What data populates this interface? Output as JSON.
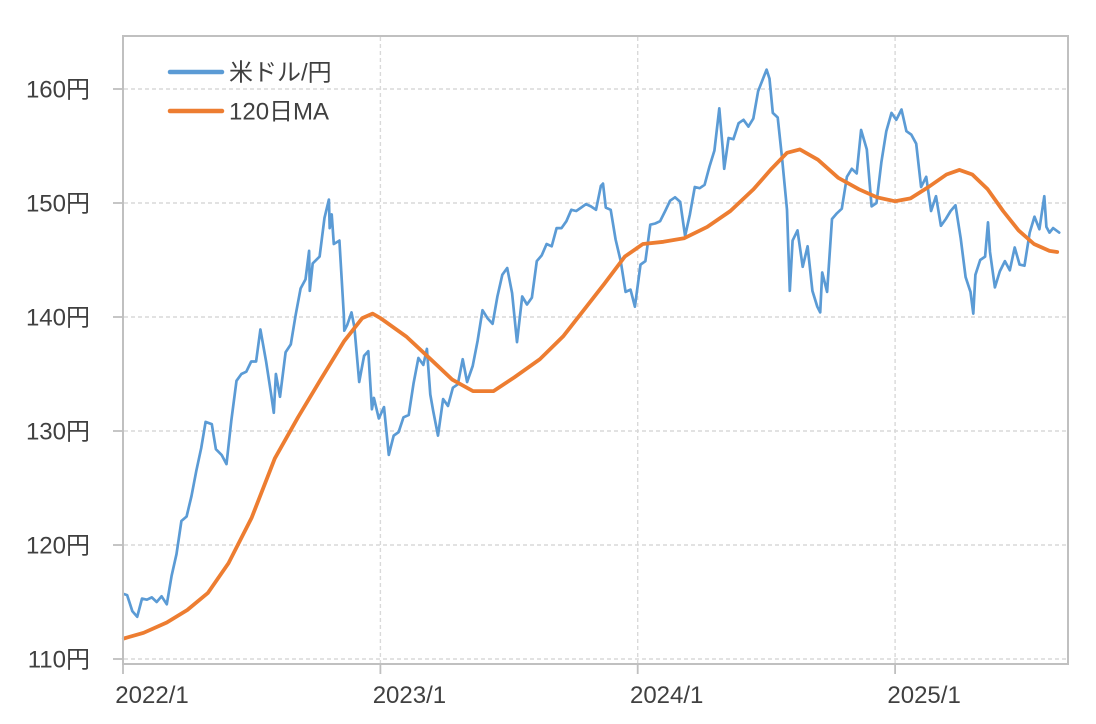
{
  "chart_data": {
    "type": "line",
    "title": "",
    "xlabel": "",
    "ylabel": "",
    "grid": true,
    "legend_position": "upper-left",
    "x_domain": [
      2022.0,
      2025.672
    ],
    "y_domain": [
      109.56,
      164.65
    ],
    "x_ticks": [
      {
        "t": 2022.0,
        "label": "2022/1",
        "grid": false
      },
      {
        "t": 2023.0,
        "label": "2023/1",
        "grid": true
      },
      {
        "t": 2024.0,
        "label": "2024/1",
        "grid": true
      },
      {
        "t": 2025.0,
        "label": "2025/1",
        "grid": true
      }
    ],
    "y_ticks": [
      {
        "value": 110,
        "label": "110円"
      },
      {
        "value": 120,
        "label": "120円"
      },
      {
        "value": 130,
        "label": "130円"
      },
      {
        "value": 140,
        "label": "140円"
      },
      {
        "value": 150,
        "label": "150円"
      },
      {
        "value": 160,
        "label": "160円"
      }
    ],
    "series": [
      {
        "id": "usdjpy",
        "name": "米ドル/円",
        "color": "#5B9BD5",
        "width": 2.7,
        "points": [
          [
            2022.003,
            115.7
          ],
          [
            2022.016,
            115.6
          ],
          [
            2022.036,
            114.2
          ],
          [
            2022.055,
            113.7
          ],
          [
            2022.074,
            115.3
          ],
          [
            2022.093,
            115.2
          ],
          [
            2022.112,
            115.4
          ],
          [
            2022.131,
            115.0
          ],
          [
            2022.15,
            115.5
          ],
          [
            2022.17,
            114.8
          ],
          [
            2022.189,
            117.3
          ],
          [
            2022.208,
            119.2
          ],
          [
            2022.227,
            122.1
          ],
          [
            2022.247,
            122.5
          ],
          [
            2022.266,
            124.3
          ],
          [
            2022.285,
            126.5
          ],
          [
            2022.304,
            128.5
          ],
          [
            2022.321,
            130.8
          ],
          [
            2022.345,
            130.6
          ],
          [
            2022.361,
            128.4
          ],
          [
            2022.383,
            127.9
          ],
          [
            2022.402,
            127.1
          ],
          [
            2022.421,
            130.9
          ],
          [
            2022.441,
            134.4
          ],
          [
            2022.46,
            135.0
          ],
          [
            2022.479,
            135.2
          ],
          [
            2022.498,
            136.1
          ],
          [
            2022.517,
            136.1
          ],
          [
            2022.534,
            138.9
          ],
          [
            2022.556,
            136.1
          ],
          [
            2022.575,
            133.3
          ],
          [
            2022.586,
            131.6
          ],
          [
            2022.594,
            135.0
          ],
          [
            2022.61,
            133.0
          ],
          [
            2022.632,
            136.9
          ],
          [
            2022.652,
            137.6
          ],
          [
            2022.671,
            140.2
          ],
          [
            2022.69,
            142.5
          ],
          [
            2022.709,
            143.3
          ],
          [
            2022.723,
            145.8
          ],
          [
            2022.726,
            142.3
          ],
          [
            2022.737,
            144.7
          ],
          [
            2022.764,
            145.3
          ],
          [
            2022.783,
            148.7
          ],
          [
            2022.8,
            150.3
          ],
          [
            2022.803,
            147.8
          ],
          [
            2022.811,
            149.0
          ],
          [
            2022.819,
            146.4
          ],
          [
            2022.841,
            146.7
          ],
          [
            2022.858,
            140.2
          ],
          [
            2022.86,
            138.8
          ],
          [
            2022.871,
            139.3
          ],
          [
            2022.888,
            140.4
          ],
          [
            2022.899,
            139.1
          ],
          [
            2022.918,
            134.3
          ],
          [
            2022.937,
            136.6
          ],
          [
            2022.953,
            137.0
          ],
          [
            2022.967,
            131.9
          ],
          [
            2022.975,
            132.9
          ],
          [
            2022.994,
            131.1
          ],
          [
            2023.014,
            132.1
          ],
          [
            2023.033,
            127.9
          ],
          [
            2023.052,
            129.6
          ],
          [
            2023.071,
            129.9
          ],
          [
            2023.09,
            131.2
          ],
          [
            2023.11,
            131.4
          ],
          [
            2023.129,
            134.2
          ],
          [
            2023.148,
            136.4
          ],
          [
            2023.167,
            135.8
          ],
          [
            2023.181,
            137.2
          ],
          [
            2023.194,
            133.2
          ],
          [
            2023.205,
            131.8
          ],
          [
            2023.224,
            129.6
          ],
          [
            2023.244,
            132.8
          ],
          [
            2023.263,
            132.2
          ],
          [
            2023.282,
            133.8
          ],
          [
            2023.301,
            134.1
          ],
          [
            2023.32,
            136.3
          ],
          [
            2023.337,
            134.3
          ],
          [
            2023.359,
            135.7
          ],
          [
            2023.378,
            137.9
          ],
          [
            2023.397,
            140.6
          ],
          [
            2023.416,
            139.9
          ],
          [
            2023.436,
            139.4
          ],
          [
            2023.455,
            141.8
          ],
          [
            2023.474,
            143.7
          ],
          [
            2023.493,
            144.3
          ],
          [
            2023.512,
            142.1
          ],
          [
            2023.531,
            137.8
          ],
          [
            2023.551,
            141.8
          ],
          [
            2023.57,
            141.1
          ],
          [
            2023.589,
            141.7
          ],
          [
            2023.608,
            144.9
          ],
          [
            2023.627,
            145.4
          ],
          [
            2023.646,
            146.4
          ],
          [
            2023.666,
            146.2
          ],
          [
            2023.685,
            147.8
          ],
          [
            2023.704,
            147.8
          ],
          [
            2023.723,
            148.4
          ],
          [
            2023.742,
            149.4
          ],
          [
            2023.761,
            149.3
          ],
          [
            2023.78,
            149.6
          ],
          [
            2023.799,
            149.9
          ],
          [
            2023.818,
            149.7
          ],
          [
            2023.838,
            149.4
          ],
          [
            2023.857,
            151.5
          ],
          [
            2023.865,
            151.7
          ],
          [
            2023.876,
            149.6
          ],
          [
            2023.895,
            149.4
          ],
          [
            2023.914,
            146.8
          ],
          [
            2023.934,
            144.9
          ],
          [
            2023.953,
            142.2
          ],
          [
            2023.972,
            142.4
          ],
          [
            2023.989,
            140.9
          ],
          [
            2024.011,
            144.6
          ],
          [
            2024.03,
            144.9
          ],
          [
            2024.049,
            148.1
          ],
          [
            2024.068,
            148.2
          ],
          [
            2024.087,
            148.4
          ],
          [
            2024.107,
            149.3
          ],
          [
            2024.126,
            150.2
          ],
          [
            2024.145,
            150.5
          ],
          [
            2024.165,
            150.1
          ],
          [
            2024.184,
            147.1
          ],
          [
            2024.203,
            149.0
          ],
          [
            2024.222,
            151.4
          ],
          [
            2024.241,
            151.3
          ],
          [
            2024.26,
            151.6
          ],
          [
            2024.279,
            153.2
          ],
          [
            2024.298,
            154.6
          ],
          [
            2024.317,
            158.3
          ],
          [
            2024.331,
            154.6
          ],
          [
            2024.336,
            153.0
          ],
          [
            2024.353,
            155.7
          ],
          [
            2024.372,
            155.6
          ],
          [
            2024.392,
            157.0
          ],
          [
            2024.411,
            157.3
          ],
          [
            2024.43,
            156.7
          ],
          [
            2024.449,
            157.4
          ],
          [
            2024.468,
            159.8
          ],
          [
            2024.487,
            160.9
          ],
          [
            2024.501,
            161.7
          ],
          [
            2024.512,
            160.9
          ],
          [
            2024.525,
            157.9
          ],
          [
            2024.544,
            157.5
          ],
          [
            2024.561,
            153.9
          ],
          [
            2024.58,
            149.4
          ],
          [
            2024.591,
            142.3
          ],
          [
            2024.602,
            146.7
          ],
          [
            2024.621,
            147.6
          ],
          [
            2024.641,
            144.4
          ],
          [
            2024.66,
            146.2
          ],
          [
            2024.679,
            142.3
          ],
          [
            2024.698,
            140.9
          ],
          [
            2024.709,
            140.4
          ],
          [
            2024.717,
            143.9
          ],
          [
            2024.736,
            142.2
          ],
          [
            2024.755,
            148.6
          ],
          [
            2024.774,
            149.1
          ],
          [
            2024.793,
            149.5
          ],
          [
            2024.813,
            152.3
          ],
          [
            2024.832,
            153.0
          ],
          [
            2024.851,
            152.6
          ],
          [
            2024.868,
            156.4
          ],
          [
            2024.89,
            154.7
          ],
          [
            2024.909,
            149.7
          ],
          [
            2024.928,
            150.0
          ],
          [
            2024.947,
            153.6
          ],
          [
            2024.966,
            156.3
          ],
          [
            2024.986,
            157.9
          ],
          [
            2025.005,
            157.3
          ],
          [
            2025.025,
            158.2
          ],
          [
            2025.044,
            156.3
          ],
          [
            2025.063,
            156.0
          ],
          [
            2025.082,
            155.2
          ],
          [
            2025.101,
            151.4
          ],
          [
            2025.121,
            152.3
          ],
          [
            2025.14,
            149.3
          ],
          [
            2025.159,
            150.6
          ],
          [
            2025.178,
            148.0
          ],
          [
            2025.197,
            148.6
          ],
          [
            2025.216,
            149.3
          ],
          [
            2025.235,
            149.8
          ],
          [
            2025.255,
            146.9
          ],
          [
            2025.274,
            143.5
          ],
          [
            2025.293,
            142.2
          ],
          [
            2025.304,
            140.3
          ],
          [
            2025.312,
            143.7
          ],
          [
            2025.331,
            145.0
          ],
          [
            2025.35,
            145.3
          ],
          [
            2025.361,
            148.3
          ],
          [
            2025.369,
            145.7
          ],
          [
            2025.388,
            142.6
          ],
          [
            2025.407,
            144.0
          ],
          [
            2025.427,
            144.9
          ],
          [
            2025.446,
            144.1
          ],
          [
            2025.465,
            146.1
          ],
          [
            2025.484,
            144.6
          ],
          [
            2025.503,
            144.5
          ],
          [
            2025.523,
            147.4
          ],
          [
            2025.542,
            148.8
          ],
          [
            2025.561,
            147.7
          ],
          [
            2025.58,
            150.6
          ],
          [
            2025.588,
            147.9
          ],
          [
            2025.6,
            147.4
          ],
          [
            2025.614,
            147.8
          ],
          [
            2025.638,
            147.4
          ]
        ]
      },
      {
        "id": "ma120",
        "name": "120日MA",
        "color": "#ED7D31",
        "width": 3.8,
        "points": [
          [
            2022.003,
            111.8
          ],
          [
            2022.08,
            112.3
          ],
          [
            2022.17,
            113.2
          ],
          [
            2022.25,
            114.3
          ],
          [
            2022.33,
            115.8
          ],
          [
            2022.41,
            118.4
          ],
          [
            2022.5,
            122.4
          ],
          [
            2022.59,
            127.6
          ],
          [
            2022.68,
            131.2
          ],
          [
            2022.77,
            134.6
          ],
          [
            2022.86,
            137.9
          ],
          [
            2022.93,
            139.9
          ],
          [
            2022.97,
            140.3
          ],
          [
            2023.0,
            139.9
          ],
          [
            2023.1,
            138.3
          ],
          [
            2023.2,
            136.2
          ],
          [
            2023.28,
            134.5
          ],
          [
            2023.36,
            133.5
          ],
          [
            2023.44,
            133.5
          ],
          [
            2023.52,
            134.7
          ],
          [
            2023.62,
            136.3
          ],
          [
            2023.71,
            138.3
          ],
          [
            2023.79,
            140.6
          ],
          [
            2023.87,
            142.9
          ],
          [
            2023.95,
            145.3
          ],
          [
            2024.02,
            146.4
          ],
          [
            2024.1,
            146.6
          ],
          [
            2024.18,
            146.9
          ],
          [
            2024.27,
            147.9
          ],
          [
            2024.36,
            149.3
          ],
          [
            2024.45,
            151.2
          ],
          [
            2024.52,
            153.0
          ],
          [
            2024.58,
            154.4
          ],
          [
            2024.63,
            154.7
          ],
          [
            2024.7,
            153.8
          ],
          [
            2024.78,
            152.2
          ],
          [
            2024.86,
            151.2
          ],
          [
            2024.93,
            150.5
          ],
          [
            2025.0,
            150.15
          ],
          [
            2025.06,
            150.4
          ],
          [
            2025.13,
            151.4
          ],
          [
            2025.2,
            152.5
          ],
          [
            2025.25,
            152.9
          ],
          [
            2025.3,
            152.5
          ],
          [
            2025.36,
            151.2
          ],
          [
            2025.42,
            149.3
          ],
          [
            2025.48,
            147.6
          ],
          [
            2025.54,
            146.4
          ],
          [
            2025.6,
            145.8
          ],
          [
            2025.63,
            145.7
          ]
        ]
      }
    ]
  }
}
